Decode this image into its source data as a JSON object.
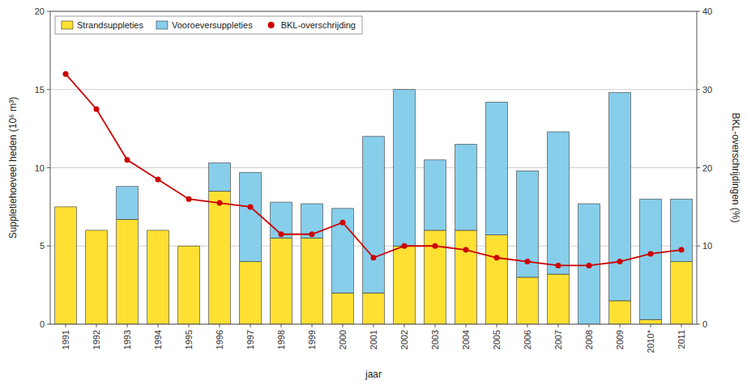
{
  "chart_data": {
    "type": "bar",
    "stacked": true,
    "xlabel": "jaar",
    "ylabel": "Suppletiehoeveel heden (10⁶ m³)",
    "y2label": "BKL-overschrijdingen (%)",
    "categories": [
      "1991",
      "1992",
      "1993",
      "1994",
      "1995",
      "1996",
      "1997",
      "1998",
      "1999",
      "2000",
      "2001",
      "2002",
      "2003",
      "2004",
      "2005",
      "2006",
      "2007",
      "2008",
      "2009",
      "2010*",
      "2011"
    ],
    "series": [
      {
        "name": "Strandsuppleties",
        "type": "bar",
        "color": "#FFE033",
        "values": [
          7.5,
          6.0,
          6.7,
          6.0,
          5.0,
          8.5,
          4.0,
          5.5,
          5.5,
          2.0,
          2.0,
          5.0,
          6.0,
          6.0,
          5.7,
          3.0,
          3.2,
          0.0,
          1.5,
          0.3,
          4.0
        ]
      },
      {
        "name": "Vooroeversuppleties",
        "type": "bar",
        "color": "#87CEEB",
        "values": [
          0.0,
          0.0,
          2.1,
          0.0,
          0.0,
          1.8,
          5.7,
          2.3,
          2.2,
          5.4,
          10.0,
          10.0,
          4.5,
          5.5,
          8.5,
          6.8,
          9.1,
          7.7,
          13.3,
          7.7,
          4.0
        ]
      },
      {
        "name": "BKL-overschrijding",
        "type": "line",
        "axis": "y2",
        "color": "#CC0000",
        "marker": "circle",
        "values": [
          32.0,
          27.5,
          21.0,
          18.5,
          16.0,
          15.5,
          15.0,
          11.5,
          11.5,
          13.0,
          8.5,
          10.0,
          10.0,
          9.5,
          8.5,
          8.0,
          7.5,
          7.5,
          8.0,
          9.0,
          9.5
        ]
      }
    ],
    "ylim": [
      0,
      20
    ],
    "yticks": [
      0,
      5,
      10,
      15,
      20
    ],
    "y2lim": [
      0,
      40
    ],
    "y2ticks": [
      0,
      10,
      20,
      30,
      40
    ],
    "grid": true,
    "legend": "top-left"
  }
}
